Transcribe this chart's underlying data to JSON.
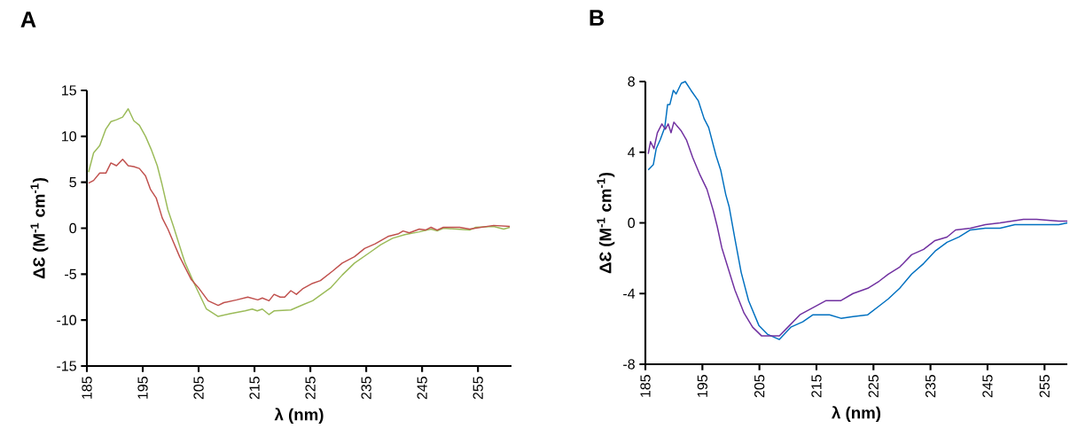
{
  "chart_data": [
    {
      "type": "line",
      "title": "A",
      "xlabel": "λ (nm)",
      "ylabel": "ΔƐ (M$^{-1}$ cm$^{-1}$)",
      "xlim": [
        185,
        261
      ],
      "xticks": [
        185,
        195,
        205,
        215,
        225,
        235,
        245,
        255
      ],
      "ylim": [
        -15,
        15
      ],
      "yticks": [
        -15,
        -10,
        -5,
        0,
        5,
        10,
        15
      ],
      "series": [
        {
          "color": "#9bbb59",
          "x": [
            185.3,
            186.2,
            187.3,
            188.4,
            189.3,
            190.3,
            191.4,
            192.4,
            193.4,
            194.4,
            195.5,
            196.5,
            197.6,
            198.4,
            199.5,
            200.5,
            202.1,
            202.6,
            204.2,
            206.4,
            208.5,
            210.6,
            213.3,
            214.6,
            215.5,
            216.4,
            217.6,
            218.5,
            221.5,
            223.8,
            225.4,
            228.6,
            230.7,
            232.9,
            235.5,
            237.6,
            239.7,
            241.9,
            244.5,
            246.6,
            247.7,
            248.8,
            253.5,
            254.6,
            257.8,
            259.6,
            260.7
          ],
          "values": [
            6.1,
            8.2,
            9.0,
            10.8,
            11.6,
            11.8,
            12.1,
            13.0,
            11.7,
            11.2,
            10.0,
            8.6,
            6.8,
            4.9,
            2.0,
            0.2,
            -2.9,
            -3.8,
            -6.0,
            -8.8,
            -9.6,
            -9.3,
            -9.0,
            -8.8,
            -9.0,
            -8.8,
            -9.4,
            -9.0,
            -8.9,
            -8.3,
            -7.9,
            -6.5,
            -5.1,
            -3.8,
            -2.7,
            -1.8,
            -1.1,
            -0.7,
            -0.4,
            -0.1,
            -0.3,
            0.0,
            -0.2,
            0.1,
            0.2,
            -0.1,
            0.1
          ]
        },
        {
          "color": "#c0504d",
          "x": [
            185.3,
            186.2,
            187.3,
            188.4,
            189.3,
            190.3,
            191.4,
            192.4,
            193.4,
            194.4,
            195.5,
            196.4,
            197.4,
            198.5,
            199.5,
            201.6,
            203.7,
            205.0,
            206.7,
            208.5,
            209.5,
            211.8,
            213.8,
            215.6,
            216.4,
            217.6,
            218.5,
            219.6,
            220.4,
            221.5,
            222.5,
            223.6,
            225.4,
            226.8,
            228.9,
            230.7,
            232.9,
            234.7,
            236.6,
            238.9,
            240.8,
            241.6,
            242.7,
            244.5,
            245.6,
            246.6,
            247.7,
            248.8,
            251.7,
            253.5,
            257.8,
            260.7
          ],
          "values": [
            4.9,
            5.2,
            6.0,
            6.0,
            7.1,
            6.8,
            7.5,
            6.8,
            6.7,
            6.5,
            5.7,
            4.2,
            3.3,
            1.1,
            -0.1,
            -3.1,
            -5.6,
            -6.5,
            -7.9,
            -8.4,
            -8.1,
            -7.8,
            -7.5,
            -7.8,
            -7.6,
            -7.9,
            -7.2,
            -7.5,
            -7.5,
            -6.8,
            -7.2,
            -6.6,
            -6.0,
            -5.7,
            -4.7,
            -3.8,
            -3.1,
            -2.2,
            -1.7,
            -0.9,
            -0.6,
            -0.3,
            -0.5,
            -0.1,
            -0.2,
            0.1,
            -0.2,
            0.1,
            0.1,
            -0.1,
            0.3,
            0.2
          ]
        }
      ]
    },
    {
      "type": "line",
      "title": "B",
      "xlabel": "λ (nm)",
      "ylabel": "ΔƐ (M$^{-1}$ cm$^{-1}$)",
      "xlim": [
        185,
        259
      ],
      "xticks": [
        185,
        195,
        205,
        215,
        225,
        235,
        245,
        255
      ],
      "ylim": [
        -8,
        8
      ],
      "yticks": [
        -8,
        -4,
        0,
        4,
        8
      ],
      "series": [
        {
          "color": "#0070c0",
          "x": [
            185.5,
            186.4,
            186.9,
            187.6,
            188.4,
            188.9,
            189.3,
            189.9,
            190.4,
            191.3,
            192.0,
            193.0,
            194.3,
            195.3,
            196.1,
            197.4,
            198.2,
            199.1,
            199.7,
            200.7,
            201.8,
            203.1,
            204.9,
            206.4,
            208.5,
            210.5,
            212.6,
            214.4,
            217.3,
            219.3,
            221.4,
            224.0,
            226.0,
            227.6,
            229.6,
            231.7,
            233.8,
            235.8,
            237.9,
            240.0,
            242.0,
            244.6,
            247.2,
            249.8,
            252.3,
            254.9,
            257.5,
            259.0
          ],
          "values": [
            3.0,
            3.3,
            4.2,
            4.7,
            5.4,
            6.7,
            6.7,
            7.5,
            7.3,
            7.9,
            8.0,
            7.5,
            6.9,
            5.9,
            5.4,
            3.8,
            3.0,
            1.6,
            0.9,
            -0.9,
            -2.8,
            -4.4,
            -5.8,
            -6.3,
            -6.6,
            -5.9,
            -5.6,
            -5.2,
            -5.2,
            -5.4,
            -5.3,
            -5.2,
            -4.7,
            -4.3,
            -3.7,
            -2.9,
            -2.3,
            -1.6,
            -1.1,
            -0.8,
            -0.4,
            -0.3,
            -0.3,
            -0.1,
            -0.1,
            -0.1,
            -0.1,
            0.0
          ]
        },
        {
          "color": "#7030a0",
          "x": [
            185.5,
            185.9,
            186.5,
            187.1,
            187.9,
            188.5,
            189.0,
            189.5,
            190.0,
            191.3,
            192.2,
            193.3,
            194.6,
            195.8,
            196.9,
            197.6,
            198.4,
            200.7,
            202.3,
            203.8,
            205.4,
            207.2,
            208.5,
            210.0,
            212.1,
            214.4,
            216.7,
            219.3,
            221.4,
            224.0,
            226.0,
            227.6,
            229.6,
            231.7,
            233.8,
            235.8,
            237.9,
            239.4,
            242.0,
            244.6,
            247.2,
            251.3,
            253.6,
            257.5,
            259.0
          ],
          "values": [
            3.9,
            4.6,
            4.2,
            5.1,
            5.6,
            5.3,
            5.6,
            5.1,
            5.7,
            5.2,
            4.7,
            3.7,
            2.7,
            1.9,
            0.7,
            -0.2,
            -1.4,
            -3.8,
            -5.1,
            -5.9,
            -6.4,
            -6.4,
            -6.4,
            -5.9,
            -5.2,
            -4.8,
            -4.4,
            -4.4,
            -4.0,
            -3.7,
            -3.3,
            -2.9,
            -2.5,
            -1.8,
            -1.5,
            -1.0,
            -0.8,
            -0.4,
            -0.3,
            -0.1,
            0.0,
            0.2,
            0.2,
            0.1,
            0.1
          ]
        }
      ]
    }
  ]
}
